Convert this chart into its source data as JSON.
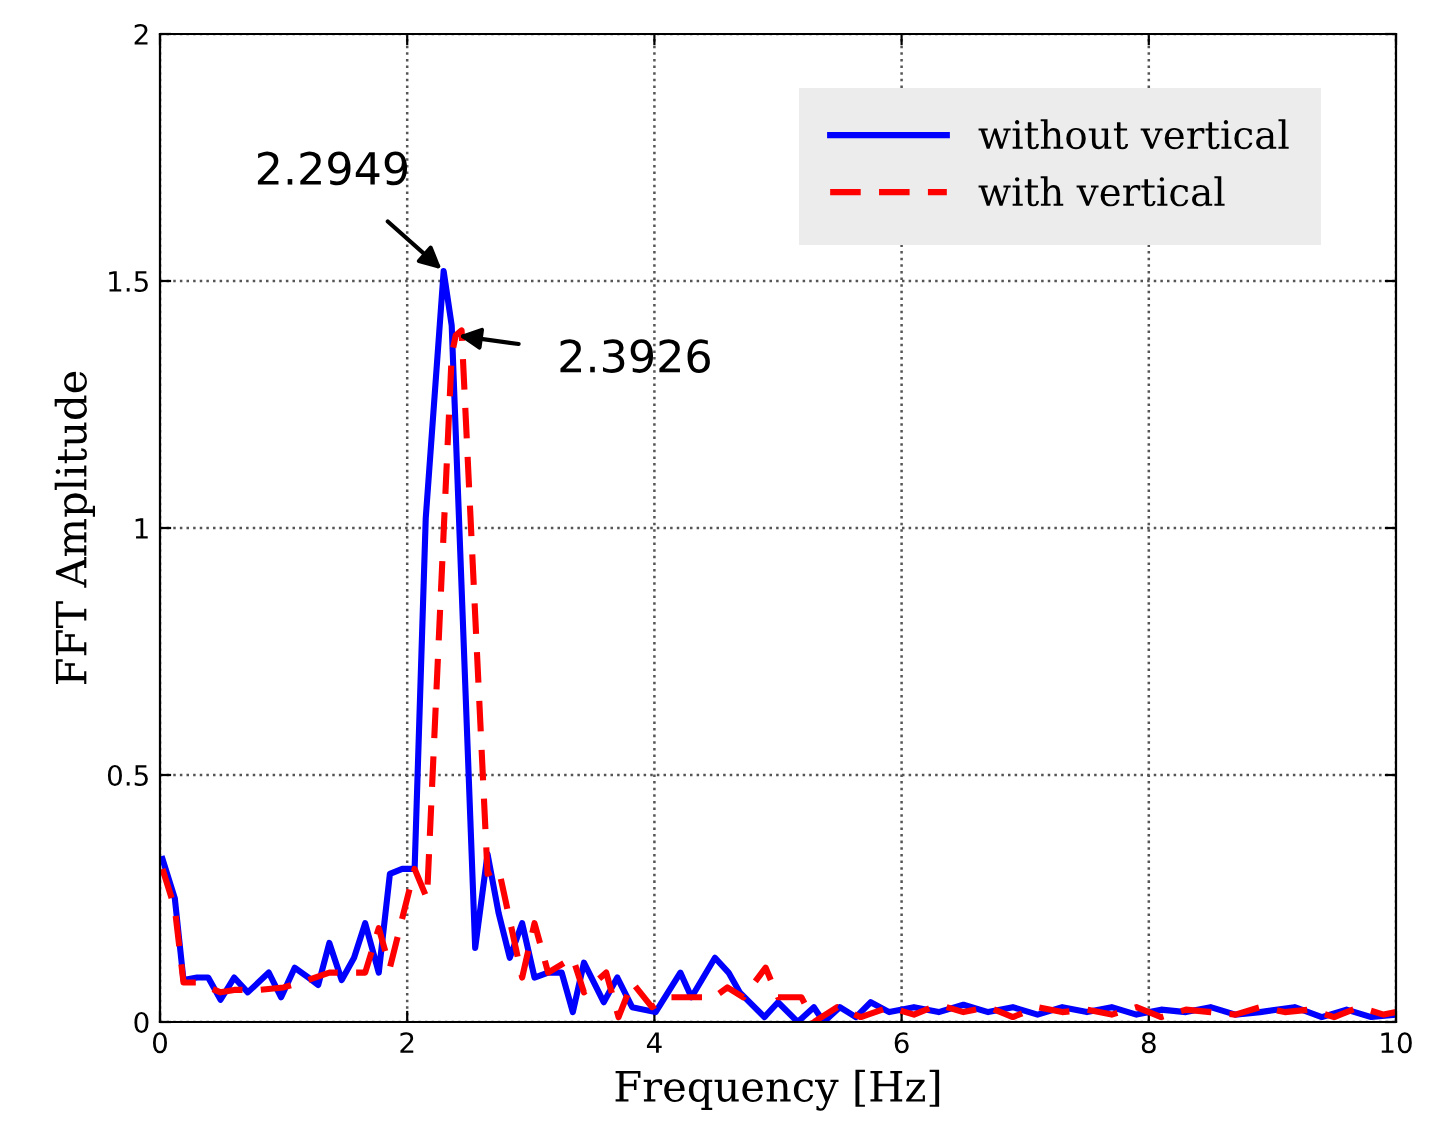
{
  "chart_data": {
    "type": "line",
    "xlabel": "Frequency [Hz]",
    "ylabel": "FFT Amplitude",
    "xlim": [
      0,
      10
    ],
    "ylim": [
      0,
      2
    ],
    "xticks": [
      0,
      2,
      4,
      6,
      8,
      10
    ],
    "yticks": [
      0,
      0.5,
      1,
      1.5,
      2
    ],
    "grid": true,
    "legend": "top right",
    "series": [
      {
        "name": "without vertical",
        "color": "#0000ff",
        "line_style": "solid",
        "x": [
          0.02,
          0.12,
          0.19,
          0.3,
          0.39,
          0.49,
          0.6,
          0.71,
          0.88,
          0.98,
          1.09,
          1.2,
          1.28,
          1.37,
          1.47,
          1.57,
          1.66,
          1.77,
          1.86,
          1.96,
          2.06,
          2.15,
          2.2949,
          2.36,
          2.55,
          2.65,
          2.74,
          2.83,
          2.93,
          3.03,
          3.14,
          3.25,
          3.34,
          3.43,
          3.59,
          3.7,
          3.82,
          4.01,
          4.11,
          4.21,
          4.3,
          4.49,
          4.6,
          4.69,
          4.89,
          5.0,
          5.16,
          5.29,
          5.37,
          5.5,
          5.63,
          5.75,
          5.9,
          6.1,
          6.3,
          6.5,
          6.7,
          6.9,
          7.1,
          7.3,
          7.5,
          7.7,
          7.9,
          8.1,
          8.3,
          8.5,
          8.7,
          8.9,
          9.18,
          9.4,
          9.6,
          9.8,
          10.0
        ],
        "values": [
          0.33,
          0.25,
          0.085,
          0.09,
          0.09,
          0.045,
          0.09,
          0.06,
          0.1,
          0.05,
          0.11,
          0.09,
          0.075,
          0.16,
          0.085,
          0.13,
          0.2,
          0.1,
          0.3,
          0.31,
          0.31,
          1.02,
          1.52,
          1.41,
          0.15,
          0.34,
          0.22,
          0.13,
          0.2,
          0.09,
          0.1,
          0.1,
          0.02,
          0.12,
          0.04,
          0.09,
          0.03,
          0.02,
          0.06,
          0.1,
          0.05,
          0.13,
          0.1,
          0.06,
          0.01,
          0.04,
          0.0,
          0.03,
          0.0,
          0.03,
          0.01,
          0.04,
          0.02,
          0.03,
          0.02,
          0.035,
          0.02,
          0.03,
          0.015,
          0.03,
          0.02,
          0.03,
          0.015,
          0.025,
          0.02,
          0.03,
          0.015,
          0.02,
          0.03,
          0.01,
          0.025,
          0.01,
          0.015
        ]
      },
      {
        "name": "with vertical",
        "color": "#ff0000",
        "line_style": "dashed",
        "x": [
          0.02,
          0.12,
          0.19,
          0.3,
          0.49,
          0.6,
          0.8,
          1.0,
          1.2,
          1.37,
          1.47,
          1.66,
          1.77,
          1.86,
          2.06,
          2.16,
          2.36,
          2.3926,
          2.44,
          2.65,
          2.74,
          2.93,
          3.03,
          3.14,
          3.34,
          3.43,
          3.61,
          3.71,
          3.82,
          3.98,
          4.11,
          4.27,
          4.48,
          4.59,
          4.72,
          4.9,
          5.0,
          5.19,
          5.29,
          5.48,
          5.67,
          5.9,
          6.1,
          6.3,
          6.5,
          6.7,
          6.9,
          7.1,
          7.3,
          7.5,
          7.7,
          7.9,
          8.1,
          8.3,
          8.5,
          8.7,
          8.9,
          9.1,
          9.3,
          9.5,
          9.7,
          9.9,
          10.0
        ],
        "values": [
          0.31,
          0.23,
          0.08,
          0.08,
          0.06,
          0.065,
          0.065,
          0.07,
          0.085,
          0.1,
          0.1,
          0.1,
          0.19,
          0.11,
          0.31,
          0.25,
          1.35,
          1.39,
          1.4,
          0.3,
          0.31,
          0.09,
          0.2,
          0.1,
          0.13,
          0.06,
          0.1,
          0.01,
          0.08,
          0.03,
          0.05,
          0.05,
          0.05,
          0.07,
          0.05,
          0.11,
          0.05,
          0.05,
          0.0,
          0.03,
          0.01,
          0.03,
          0.015,
          0.035,
          0.02,
          0.03,
          0.01,
          0.03,
          0.02,
          0.025,
          0.015,
          0.03,
          0.01,
          0.025,
          0.02,
          0.015,
          0.03,
          0.02,
          0.025,
          0.01,
          0.03,
          0.015,
          0.02
        ]
      }
    ],
    "annotations": [
      {
        "text": "2.2949",
        "x": 2.2949,
        "y": 1.52
      },
      {
        "text": "2.3926",
        "x": 2.3926,
        "y": 1.39
      }
    ]
  }
}
